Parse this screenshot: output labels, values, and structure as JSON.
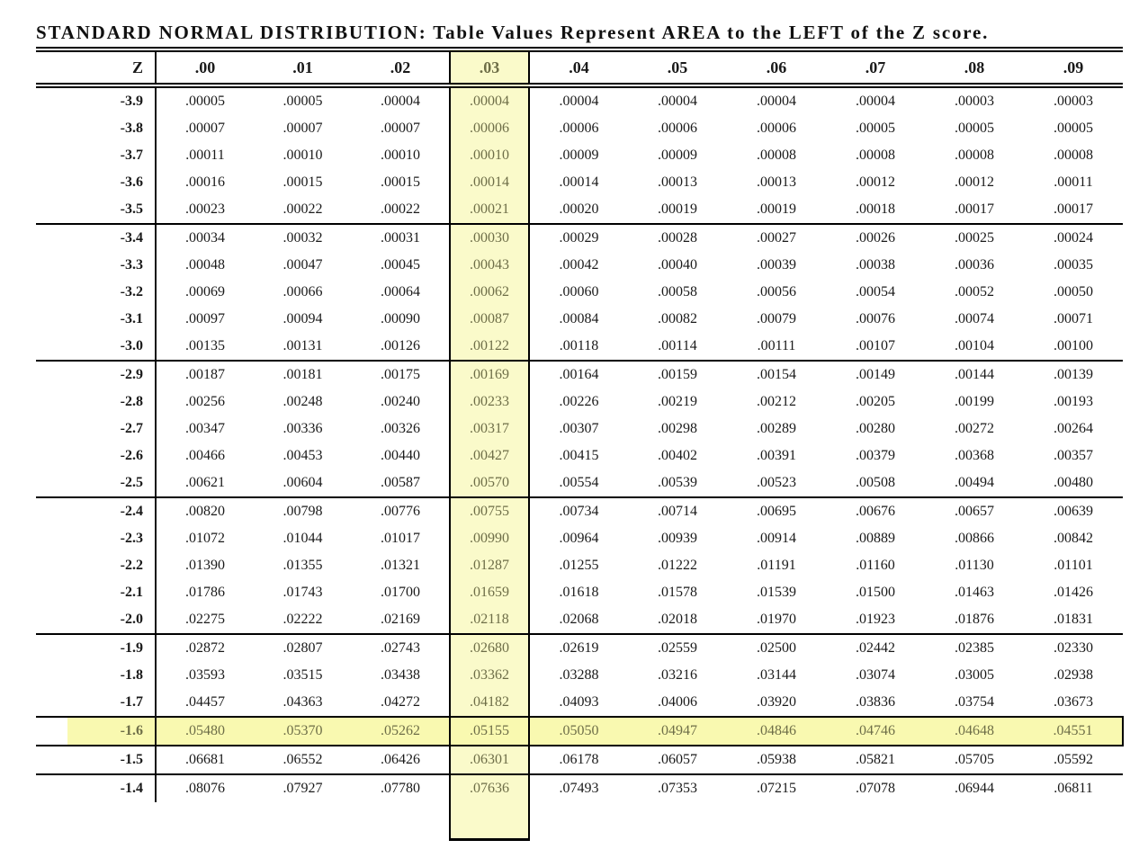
{
  "page": {
    "title": "STANDARD NORMAL DISTRIBUTION: Table Values Represent AREA to the LEFT of the Z score."
  },
  "highlight": {
    "column_label": ".03",
    "row_label": "-1.6",
    "intersection_value": ".05155",
    "column_fill_color": "#FAFACA",
    "row_fill_color": "#F9F9B0",
    "highlight_text_color": "#6E6E48",
    "border_color": "#000000"
  },
  "chart_data": {
    "type": "table",
    "title": "STANDARD NORMAL DISTRIBUTION: Table Values Represent AREA to the LEFT of the Z score.",
    "columns": [
      "Z",
      ".00",
      ".01",
      ".02",
      ".03",
      ".04",
      ".05",
      ".06",
      ".07",
      ".08",
      ".09"
    ],
    "highlighted_column": ".03",
    "highlighted_row": "-1.6",
    "section_break_after": [
      "-3.5",
      "-3.0",
      "-2.5",
      "-2.0",
      "-1.5"
    ],
    "rows": [
      {
        "z": "-3.9",
        "values": [
          ".00005",
          ".00005",
          ".00004",
          ".00004",
          ".00004",
          ".00004",
          ".00004",
          ".00004",
          ".00003",
          ".00003"
        ]
      },
      {
        "z": "-3.8",
        "values": [
          ".00007",
          ".00007",
          ".00007",
          ".00006",
          ".00006",
          ".00006",
          ".00006",
          ".00005",
          ".00005",
          ".00005"
        ]
      },
      {
        "z": "-3.7",
        "values": [
          ".00011",
          ".00010",
          ".00010",
          ".00010",
          ".00009",
          ".00009",
          ".00008",
          ".00008",
          ".00008",
          ".00008"
        ]
      },
      {
        "z": "-3.6",
        "values": [
          ".00016",
          ".00015",
          ".00015",
          ".00014",
          ".00014",
          ".00013",
          ".00013",
          ".00012",
          ".00012",
          ".00011"
        ]
      },
      {
        "z": "-3.5",
        "values": [
          ".00023",
          ".00022",
          ".00022",
          ".00021",
          ".00020",
          ".00019",
          ".00019",
          ".00018",
          ".00017",
          ".00017"
        ]
      },
      {
        "z": "-3.4",
        "values": [
          ".00034",
          ".00032",
          ".00031",
          ".00030",
          ".00029",
          ".00028",
          ".00027",
          ".00026",
          ".00025",
          ".00024"
        ]
      },
      {
        "z": "-3.3",
        "values": [
          ".00048",
          ".00047",
          ".00045",
          ".00043",
          ".00042",
          ".00040",
          ".00039",
          ".00038",
          ".00036",
          ".00035"
        ]
      },
      {
        "z": "-3.2",
        "values": [
          ".00069",
          ".00066",
          ".00064",
          ".00062",
          ".00060",
          ".00058",
          ".00056",
          ".00054",
          ".00052",
          ".00050"
        ]
      },
      {
        "z": "-3.1",
        "values": [
          ".00097",
          ".00094",
          ".00090",
          ".00087",
          ".00084",
          ".00082",
          ".00079",
          ".00076",
          ".00074",
          ".00071"
        ]
      },
      {
        "z": "-3.0",
        "values": [
          ".00135",
          ".00131",
          ".00126",
          ".00122",
          ".00118",
          ".00114",
          ".00111",
          ".00107",
          ".00104",
          ".00100"
        ]
      },
      {
        "z": "-2.9",
        "values": [
          ".00187",
          ".00181",
          ".00175",
          ".00169",
          ".00164",
          ".00159",
          ".00154",
          ".00149",
          ".00144",
          ".00139"
        ]
      },
      {
        "z": "-2.8",
        "values": [
          ".00256",
          ".00248",
          ".00240",
          ".00233",
          ".00226",
          ".00219",
          ".00212",
          ".00205",
          ".00199",
          ".00193"
        ]
      },
      {
        "z": "-2.7",
        "values": [
          ".00347",
          ".00336",
          ".00326",
          ".00317",
          ".00307",
          ".00298",
          ".00289",
          ".00280",
          ".00272",
          ".00264"
        ]
      },
      {
        "z": "-2.6",
        "values": [
          ".00466",
          ".00453",
          ".00440",
          ".00427",
          ".00415",
          ".00402",
          ".00391",
          ".00379",
          ".00368",
          ".00357"
        ]
      },
      {
        "z": "-2.5",
        "values": [
          ".00621",
          ".00604",
          ".00587",
          ".00570",
          ".00554",
          ".00539",
          ".00523",
          ".00508",
          ".00494",
          ".00480"
        ]
      },
      {
        "z": "-2.4",
        "values": [
          ".00820",
          ".00798",
          ".00776",
          ".00755",
          ".00734",
          ".00714",
          ".00695",
          ".00676",
          ".00657",
          ".00639"
        ]
      },
      {
        "z": "-2.3",
        "values": [
          ".01072",
          ".01044",
          ".01017",
          ".00990",
          ".00964",
          ".00939",
          ".00914",
          ".00889",
          ".00866",
          ".00842"
        ]
      },
      {
        "z": "-2.2",
        "values": [
          ".01390",
          ".01355",
          ".01321",
          ".01287",
          ".01255",
          ".01222",
          ".01191",
          ".01160",
          ".01130",
          ".01101"
        ]
      },
      {
        "z": "-2.1",
        "values": [
          ".01786",
          ".01743",
          ".01700",
          ".01659",
          ".01618",
          ".01578",
          ".01539",
          ".01500",
          ".01463",
          ".01426"
        ]
      },
      {
        "z": "-2.0",
        "values": [
          ".02275",
          ".02222",
          ".02169",
          ".02118",
          ".02068",
          ".02018",
          ".01970",
          ".01923",
          ".01876",
          ".01831"
        ]
      },
      {
        "z": "-1.9",
        "values": [
          ".02872",
          ".02807",
          ".02743",
          ".02680",
          ".02619",
          ".02559",
          ".02500",
          ".02442",
          ".02385",
          ".02330"
        ]
      },
      {
        "z": "-1.8",
        "values": [
          ".03593",
          ".03515",
          ".03438",
          ".03362",
          ".03288",
          ".03216",
          ".03144",
          ".03074",
          ".03005",
          ".02938"
        ]
      },
      {
        "z": "-1.7",
        "values": [
          ".04457",
          ".04363",
          ".04272",
          ".04182",
          ".04093",
          ".04006",
          ".03920",
          ".03836",
          ".03754",
          ".03673"
        ]
      },
      {
        "z": "-1.6",
        "values": [
          ".05480",
          ".05370",
          ".05262",
          ".05155",
          ".05050",
          ".04947",
          ".04846",
          ".04746",
          ".04648",
          ".04551"
        ]
      },
      {
        "z": "-1.5",
        "values": [
          ".06681",
          ".06552",
          ".06426",
          ".06301",
          ".06178",
          ".06057",
          ".05938",
          ".05821",
          ".05705",
          ".05592"
        ]
      },
      {
        "z": "-1.4",
        "values": [
          ".08076",
          ".07927",
          ".07780",
          ".07636",
          ".07493",
          ".07353",
          ".07215",
          ".07078",
          ".06944",
          ".06811"
        ]
      }
    ]
  }
}
